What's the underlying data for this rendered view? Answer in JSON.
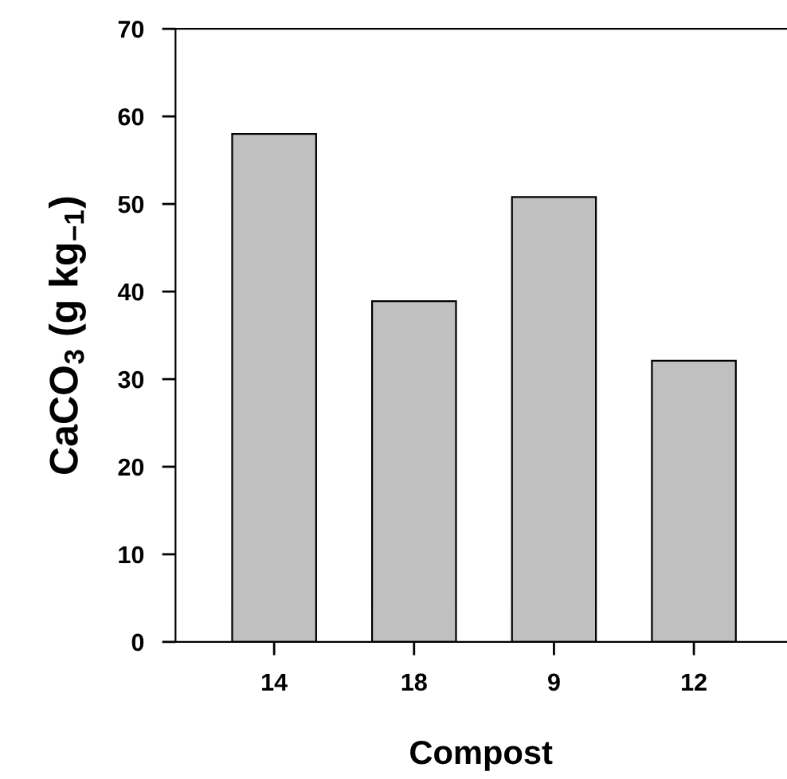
{
  "chart_data": {
    "type": "bar",
    "categories": [
      "14",
      "18",
      "9",
      "12"
    ],
    "values": [
      58.0,
      38.9,
      50.8,
      32.1
    ],
    "color": "#c0c0c0",
    "xlabel": "Compost",
    "ylabel": "CaCO$_{3}$ (g kg$_{−1}$)",
    "ylim": [
      0,
      70
    ],
    "yticks": [
      0,
      10,
      20,
      30,
      40,
      50,
      60,
      70
    ],
    "grid": false,
    "legend": false
  }
}
